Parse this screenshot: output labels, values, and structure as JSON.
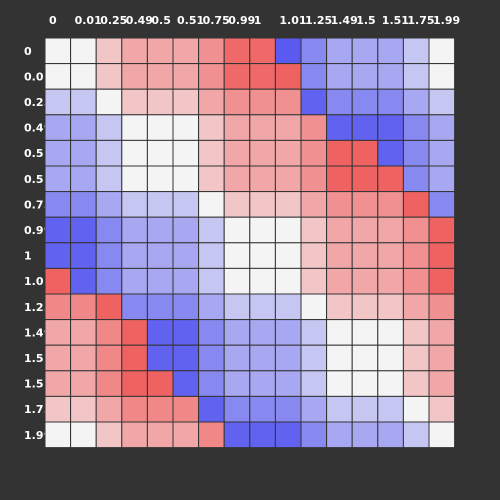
{
  "chart_data": {
    "type": "heatmap",
    "title": "",
    "xlabel": "",
    "ylabel": "",
    "x_labels": [
      "0",
      "0.01",
      "0.25",
      "0.49",
      "0.5",
      "0.51",
      "0.75",
      "0.99",
      "1",
      "1.01",
      "1.25",
      "1.49",
      "1.5",
      "1.51",
      "1.75",
      "1.99"
    ],
    "y_labels": [
      "0",
      "0.01",
      "0.25",
      "0.49",
      "0.5",
      "0.51",
      "0.75",
      "0.99",
      "1",
      "1.01",
      "1.25",
      "1.49",
      "1.5",
      "1.51",
      "1.75",
      "1.99"
    ],
    "value_range": [
      -1,
      1
    ],
    "colormap": {
      "low": "#5a5af0",
      "mid": "#f4f4f4",
      "high": "#ee5a5a"
    },
    "values": [
      [
        0.0,
        0.0,
        0.3,
        0.5,
        0.5,
        0.5,
        0.65,
        0.9,
        0.9,
        -1.0,
        -0.7,
        -0.5,
        -0.5,
        -0.5,
        -0.3,
        0.0
      ],
      [
        0.0,
        0.0,
        0.3,
        0.5,
        0.5,
        0.5,
        0.65,
        0.9,
        0.9,
        0.95,
        -0.7,
        -0.5,
        -0.5,
        -0.5,
        -0.3,
        0.0
      ],
      [
        -0.3,
        -0.3,
        0.0,
        0.3,
        0.3,
        0.3,
        0.5,
        0.65,
        0.65,
        0.65,
        -0.95,
        -0.7,
        -0.7,
        -0.7,
        -0.5,
        -0.3
      ],
      [
        -0.5,
        -0.5,
        -0.3,
        0.0,
        0.0,
        0.0,
        0.3,
        0.5,
        0.5,
        0.5,
        0.65,
        -0.95,
        -0.95,
        -0.95,
        -0.7,
        -0.5
      ],
      [
        -0.5,
        -0.5,
        -0.3,
        0.0,
        0.0,
        0.0,
        0.3,
        0.5,
        0.5,
        0.5,
        0.65,
        0.95,
        0.95,
        -0.95,
        -0.7,
        -0.5
      ],
      [
        -0.5,
        -0.5,
        -0.3,
        0.0,
        0.0,
        0.0,
        0.3,
        0.5,
        0.5,
        0.5,
        0.65,
        0.95,
        0.95,
        0.95,
        -0.7,
        -0.5
      ],
      [
        -0.7,
        -0.7,
        -0.5,
        -0.3,
        -0.3,
        -0.3,
        0.0,
        0.3,
        0.3,
        0.3,
        0.5,
        0.65,
        0.65,
        0.65,
        0.95,
        -0.7
      ],
      [
        -0.95,
        -0.95,
        -0.7,
        -0.5,
        -0.5,
        -0.5,
        -0.3,
        0.0,
        0.0,
        0.0,
        0.3,
        0.5,
        0.5,
        0.5,
        0.65,
        0.95
      ],
      [
        -0.95,
        -0.95,
        -0.7,
        -0.5,
        -0.5,
        -0.5,
        -0.3,
        0.0,
        0.0,
        0.0,
        0.3,
        0.5,
        0.5,
        0.5,
        0.65,
        0.95
      ],
      [
        0.95,
        -0.95,
        -0.7,
        -0.5,
        -0.5,
        -0.5,
        -0.3,
        0.0,
        0.0,
        0.0,
        0.3,
        0.5,
        0.5,
        0.5,
        0.65,
        0.95
      ],
      [
        0.7,
        0.7,
        0.95,
        -0.7,
        -0.7,
        -0.7,
        -0.5,
        -0.3,
        -0.3,
        -0.3,
        0.0,
        0.3,
        0.3,
        0.3,
        0.5,
        0.65
      ],
      [
        0.5,
        0.5,
        0.7,
        0.95,
        -0.95,
        -0.95,
        -0.7,
        -0.5,
        -0.5,
        -0.5,
        -0.3,
        0.0,
        0.0,
        0.0,
        0.3,
        0.5
      ],
      [
        0.5,
        0.5,
        0.7,
        0.95,
        -0.95,
        -0.95,
        -0.7,
        -0.5,
        -0.5,
        -0.5,
        -0.3,
        0.0,
        0.0,
        0.0,
        0.3,
        0.5
      ],
      [
        0.5,
        0.5,
        0.7,
        0.95,
        0.95,
        -0.95,
        -0.7,
        -0.5,
        -0.5,
        -0.5,
        -0.3,
        0.0,
        0.0,
        0.0,
        0.3,
        0.5
      ],
      [
        0.3,
        0.3,
        0.5,
        0.7,
        0.7,
        0.7,
        -0.95,
        -0.7,
        -0.7,
        -0.7,
        -0.5,
        -0.3,
        -0.3,
        -0.3,
        0.0,
        0.3
      ],
      [
        0.0,
        0.0,
        0.3,
        0.5,
        0.5,
        0.5,
        0.7,
        -0.95,
        -0.95,
        -0.95,
        -0.7,
        -0.5,
        -0.5,
        -0.5,
        -0.3,
        0.0
      ]
    ]
  }
}
